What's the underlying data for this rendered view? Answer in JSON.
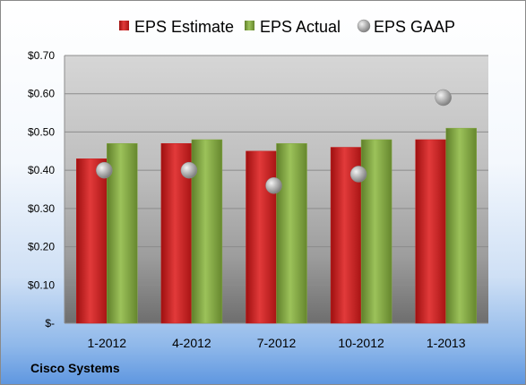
{
  "company": "Cisco Systems",
  "colors": {
    "estimate": "#c81e1e",
    "actual": "#84a843",
    "gaap": "#a8a8a8"
  },
  "chart_data": {
    "type": "bar",
    "categories": [
      "1-2012",
      "4-2012",
      "7-2012",
      "10-2012",
      "1-2013"
    ],
    "series": [
      {
        "name": "EPS Estimate",
        "kind": "bar",
        "values": [
          0.43,
          0.47,
          0.45,
          0.46,
          0.48
        ]
      },
      {
        "name": "EPS Actual",
        "kind": "bar",
        "values": [
          0.47,
          0.48,
          0.47,
          0.48,
          0.51
        ]
      },
      {
        "name": "EPS GAAP",
        "kind": "scatter",
        "values": [
          0.4,
          0.4,
          0.36,
          0.39,
          0.59
        ]
      }
    ],
    "yticks": [
      {
        "value": 0,
        "label": "$-"
      },
      {
        "value": 0.1,
        "label": "$0.10"
      },
      {
        "value": 0.2,
        "label": "$0.20"
      },
      {
        "value": 0.3,
        "label": "$0.30"
      },
      {
        "value": 0.4,
        "label": "$0.40"
      },
      {
        "value": 0.5,
        "label": "$0.50"
      },
      {
        "value": 0.6,
        "label": "$0.60"
      },
      {
        "value": 0.7,
        "label": "$0.70"
      }
    ],
    "ylim": [
      0,
      0.7
    ],
    "grid": true,
    "legend_position": "top",
    "xlabel": "",
    "ylabel": ""
  }
}
